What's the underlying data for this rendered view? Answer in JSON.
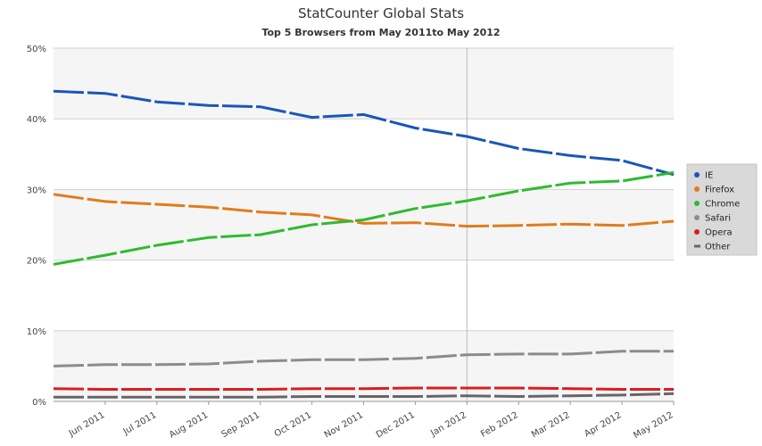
{
  "chart_data": {
    "type": "line",
    "title": "StatCounter Global Stats",
    "subtitle": "Top 5 Browsers from May 2011to May 2012",
    "categories": [
      "May 2011",
      "Jun 2011",
      "Jul 2011",
      "Aug 2011",
      "Sep 2011",
      "Oct 2011",
      "Nov 2011",
      "Dec 2011",
      "Jan 2012",
      "Feb 2012",
      "Mar 2012",
      "Apr 2012",
      "May 2012"
    ],
    "x_tick_labels": [
      "Jun 2011",
      "Jul 2011",
      "Aug 2011",
      "Sep 2011",
      "Oct 2011",
      "Nov 2011",
      "Dec 2011",
      "Jan 2012",
      "Feb 2012",
      "Mar 2012",
      "Apr 2012",
      "May 2012"
    ],
    "y_ticks": [
      0,
      10,
      20,
      30,
      40,
      50
    ],
    "y_tick_labels": [
      "0%",
      "10%",
      "20%",
      "30%",
      "40%",
      "50%"
    ],
    "ylim": [
      0,
      50
    ],
    "grid": true,
    "legend_position": "right",
    "series": [
      {
        "name": "IE",
        "color": "#1a56b8",
        "legend_marker": "circle",
        "values": [
          43.9,
          43.6,
          42.4,
          41.9,
          41.7,
          40.2,
          40.6,
          38.7,
          37.5,
          35.8,
          34.8,
          34.1,
          32.1
        ]
      },
      {
        "name": "Firefox",
        "color": "#e07c1c",
        "legend_marker": "circle",
        "values": [
          29.3,
          28.3,
          27.9,
          27.5,
          26.8,
          26.4,
          25.2,
          25.3,
          24.8,
          24.9,
          25.1,
          24.9,
          25.5
        ]
      },
      {
        "name": "Chrome",
        "color": "#2fba2f",
        "legend_marker": "circle",
        "values": [
          19.4,
          20.7,
          22.1,
          23.2,
          23.6,
          25.0,
          25.7,
          27.3,
          28.4,
          29.8,
          30.9,
          31.2,
          32.4
        ]
      },
      {
        "name": "Safari",
        "color": "#8c8c8c",
        "legend_marker": "circle",
        "values": [
          5.0,
          5.2,
          5.2,
          5.3,
          5.7,
          5.9,
          5.9,
          6.1,
          6.6,
          6.7,
          6.7,
          7.1,
          7.1
        ]
      },
      {
        "name": "Opera",
        "color": "#d91e1e",
        "legend_marker": "circle",
        "values": [
          1.8,
          1.7,
          1.7,
          1.7,
          1.7,
          1.8,
          1.8,
          1.9,
          1.9,
          1.9,
          1.8,
          1.7,
          1.7
        ]
      },
      {
        "name": "Other",
        "color": "#666666",
        "legend_marker": "dash",
        "values": [
          0.6,
          0.6,
          0.6,
          0.6,
          0.6,
          0.7,
          0.7,
          0.7,
          0.8,
          0.7,
          0.8,
          0.9,
          1.1
        ]
      }
    ]
  }
}
